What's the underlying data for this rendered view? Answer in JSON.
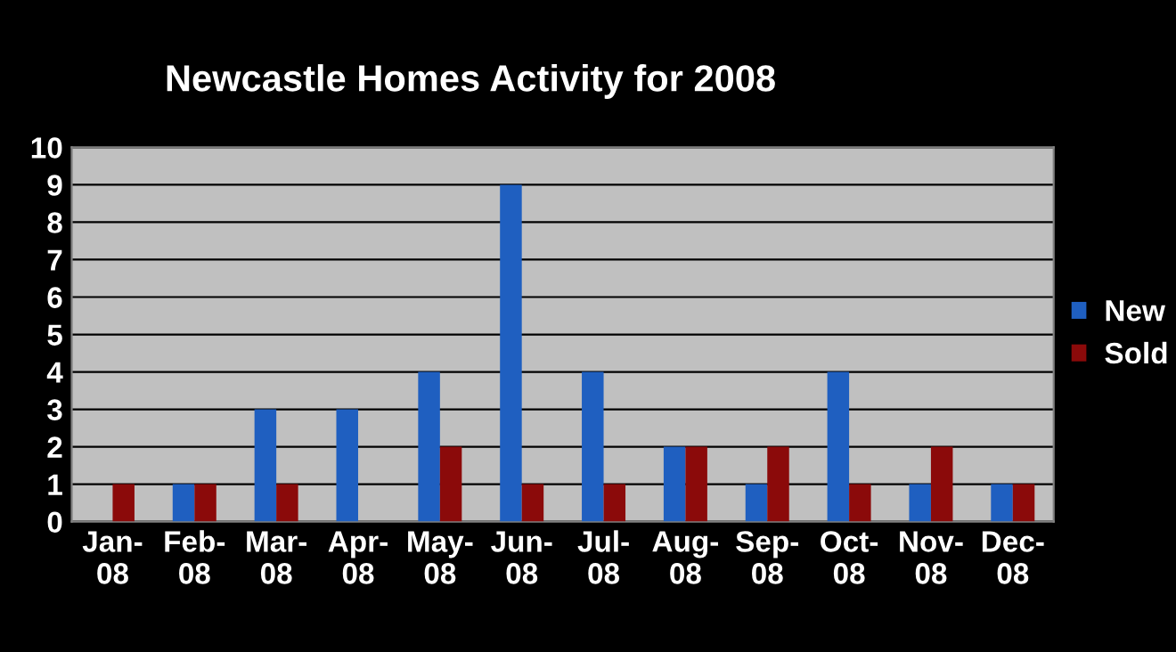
{
  "chart_data": {
    "type": "bar",
    "title": "Newcastle Homes Activity for 2008",
    "categories": [
      "Jan-\n08",
      "Feb-\n08",
      "Mar-\n08",
      "Apr-\n08",
      "May-\n08",
      "Jun-\n08",
      "Jul-\n08",
      "Aug-\n08",
      "Sep-\n08",
      "Oct-\n08",
      "Nov-\n08",
      "Dec-\n08"
    ],
    "series": [
      {
        "name": "New",
        "color": "#1f5fc0",
        "values": [
          0,
          1,
          3,
          3,
          4,
          9,
          4,
          2,
          1,
          4,
          1,
          1
        ]
      },
      {
        "name": "Sold",
        "color": "#8b0a0a",
        "values": [
          1,
          1,
          1,
          0,
          2,
          1,
          1,
          2,
          2,
          1,
          2,
          1
        ]
      }
    ],
    "ylim": [
      0,
      10
    ],
    "yticks": [
      0,
      1,
      2,
      3,
      4,
      5,
      6,
      7,
      8,
      9,
      10
    ],
    "grid": "y",
    "legend": "right"
  }
}
